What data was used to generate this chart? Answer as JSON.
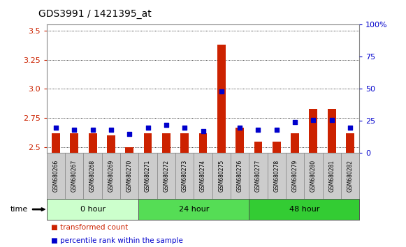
{
  "title": "GDS3991 / 1421395_at",
  "samples": [
    "GSM680266",
    "GSM680267",
    "GSM680268",
    "GSM680269",
    "GSM680270",
    "GSM680271",
    "GSM680272",
    "GSM680273",
    "GSM680274",
    "GSM680275",
    "GSM680276",
    "GSM680277",
    "GSM680278",
    "GSM680279",
    "GSM680280",
    "GSM680281",
    "GSM680282"
  ],
  "transformed_count": [
    2.62,
    2.62,
    2.62,
    2.6,
    2.5,
    2.62,
    2.62,
    2.62,
    2.62,
    3.38,
    2.67,
    2.55,
    2.55,
    2.62,
    2.83,
    2.83,
    2.62
  ],
  "percentile_rank": [
    20,
    18,
    18,
    18,
    15,
    20,
    22,
    20,
    17,
    48,
    20,
    18,
    18,
    24,
    26,
    26,
    20
  ],
  "groups": [
    {
      "label": "0 hour",
      "start": 0,
      "end": 5,
      "color": "#ccffcc"
    },
    {
      "label": "24 hour",
      "start": 5,
      "end": 11,
      "color": "#55dd55"
    },
    {
      "label": "48 hour",
      "start": 11,
      "end": 17,
      "color": "#33cc33"
    }
  ],
  "ylim_left": [
    2.45,
    3.55
  ],
  "ylim_right": [
    0,
    100
  ],
  "yticks_left": [
    2.5,
    2.75,
    3.0,
    3.25,
    3.5
  ],
  "yticks_right": [
    0,
    25,
    50,
    75,
    100
  ],
  "bar_color": "#cc2200",
  "dot_color": "#0000cc",
  "bg_color_plot": "#ffffff",
  "bg_color_xlabels": "#cccccc",
  "left_axis_color": "#cc2200",
  "right_axis_color": "#0000cc",
  "bar_base": 2.45,
  "figsize": [
    5.81,
    3.54
  ],
  "dpi": 100
}
